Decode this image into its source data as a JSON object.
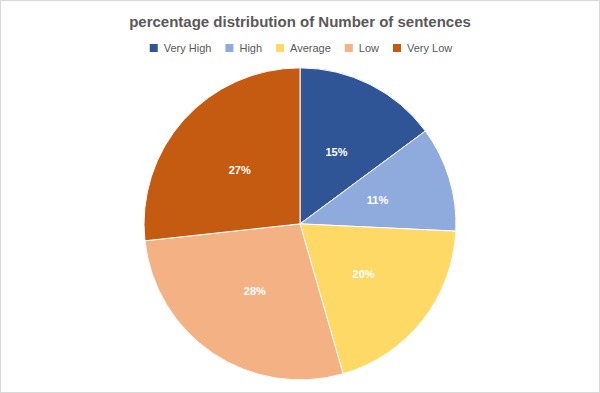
{
  "chart_data": {
    "type": "pie",
    "title": "percentage distribution of Number of sentences",
    "categories": [
      "Very High",
      "High",
      "Average",
      "Low",
      "Very Low"
    ],
    "values": [
      15,
      11,
      20,
      28,
      27
    ],
    "value_labels": [
      "15%",
      "11%",
      "20%",
      "28%",
      "27%"
    ],
    "colors": [
      "#2f5597",
      "#8faadc",
      "#ffd966",
      "#f4b183",
      "#c55a11"
    ],
    "legend": "top",
    "data_labels": true
  }
}
